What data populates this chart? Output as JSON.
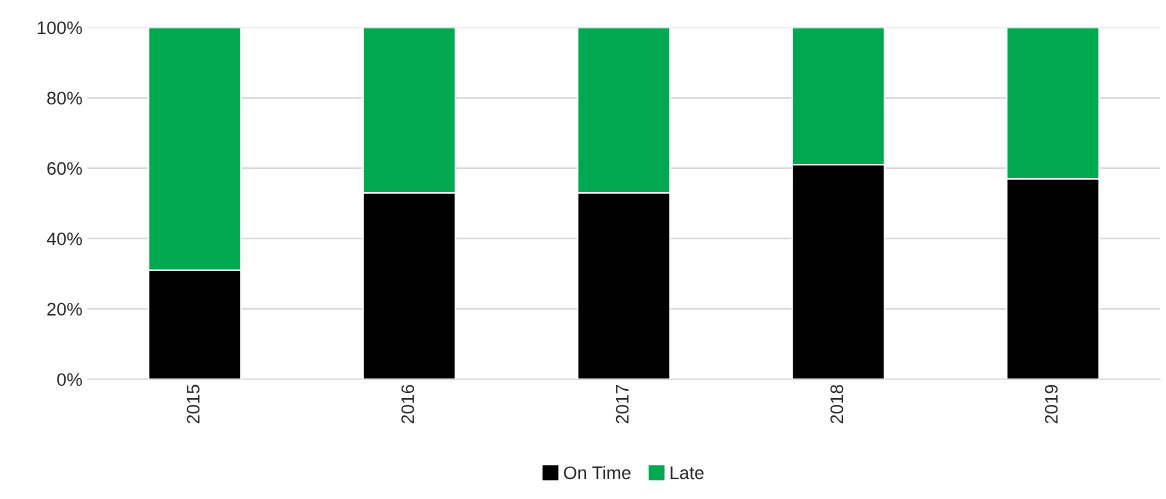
{
  "chart_data": {
    "type": "bar",
    "stacked": true,
    "categories": [
      "2015",
      "2016",
      "2017",
      "2018",
      "2019"
    ],
    "series": [
      {
        "name": "On Time",
        "color": "#000000",
        "values": [
          31,
          53,
          53,
          61,
          57
        ]
      },
      {
        "name": "Late",
        "color": "#00a84f",
        "values": [
          69,
          47,
          47,
          39,
          43
        ]
      }
    ],
    "ylim": [
      0,
      100
    ],
    "yticks": [
      {
        "value": 0,
        "label": "0%"
      },
      {
        "value": 20,
        "label": "20%"
      },
      {
        "value": 40,
        "label": "40%"
      },
      {
        "value": 60,
        "label": "60%"
      },
      {
        "value": 80,
        "label": "80%"
      },
      {
        "value": 100,
        "label": "100%"
      }
    ],
    "grid": "y",
    "legend": "bottom"
  }
}
